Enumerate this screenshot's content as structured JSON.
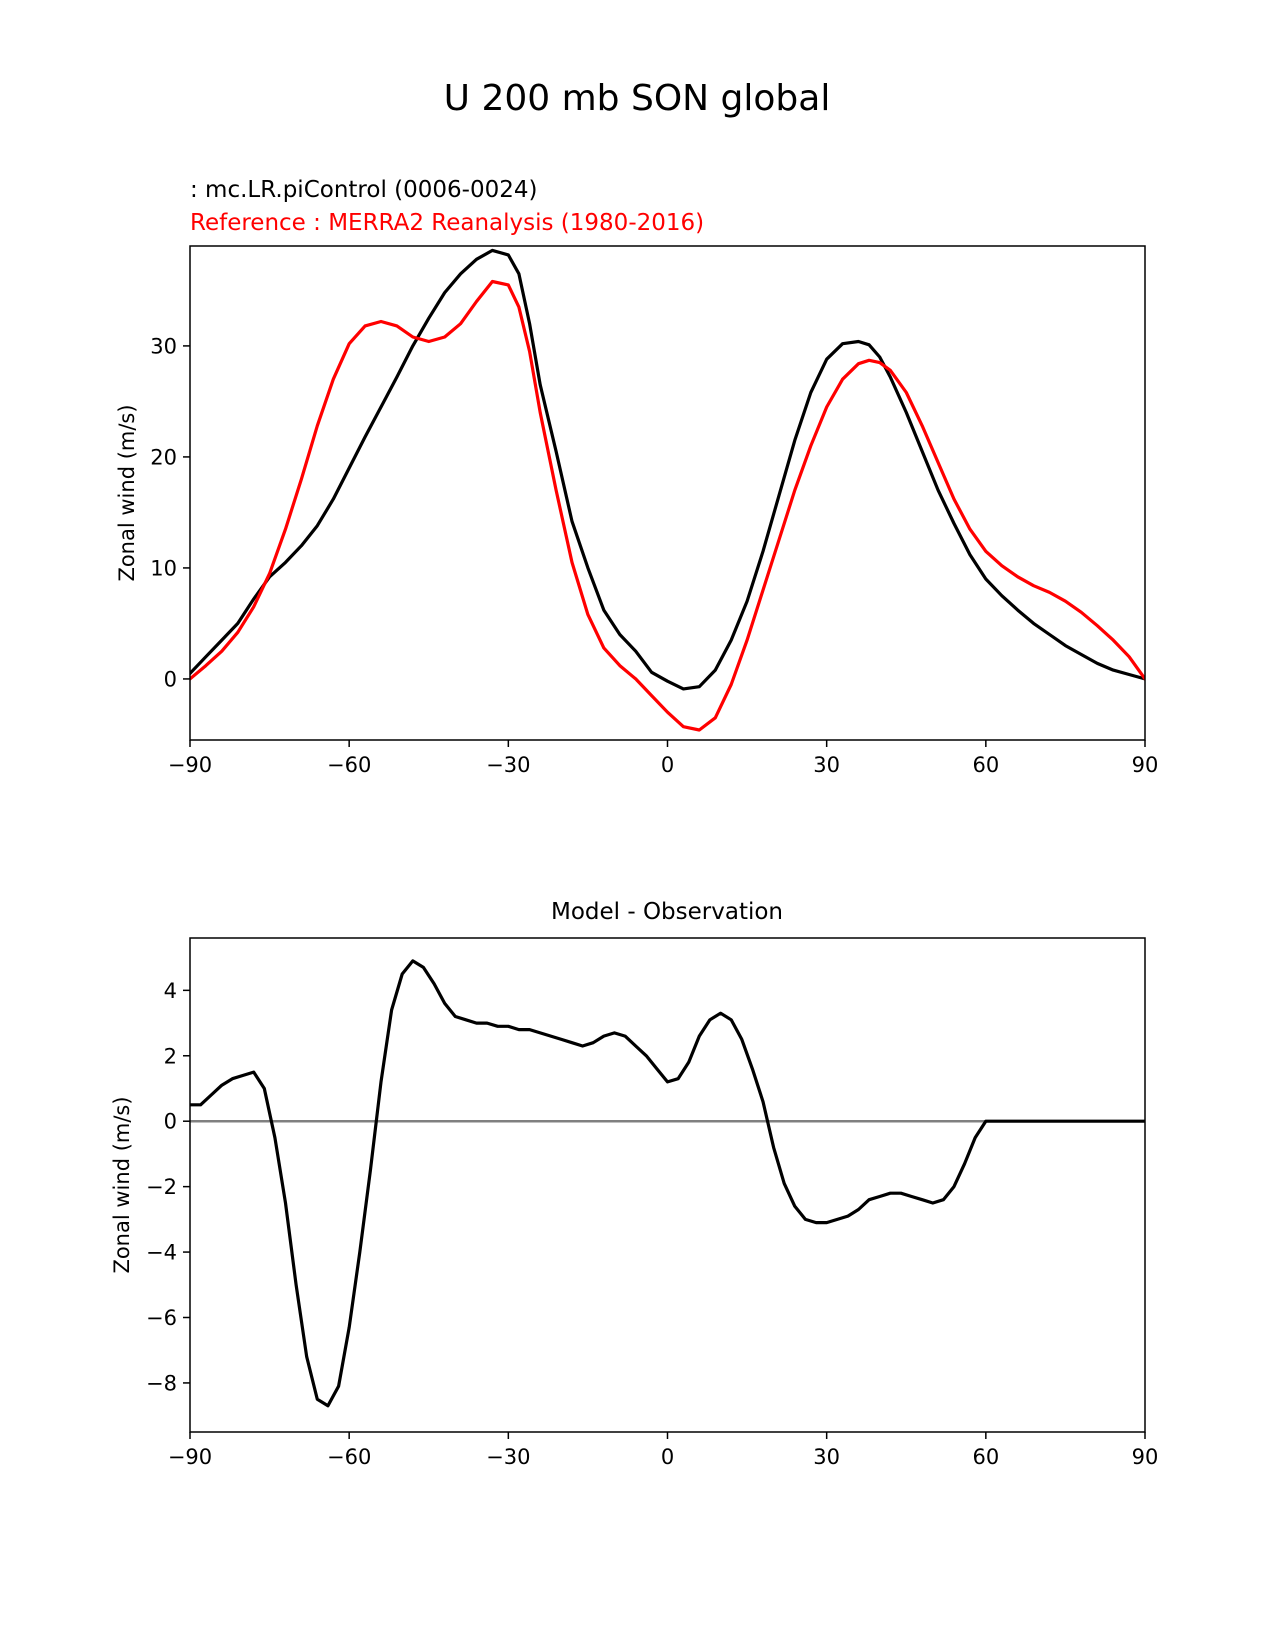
{
  "figure": {
    "suptitle": "U 200 mb SON global"
  },
  "chart_data": [
    {
      "type": "line",
      "model_label": " : mc.LR.piControl (0006-0024)",
      "reference_label": "Reference : MERRA2 Reanalysis (1980-2016)",
      "xlabel": "",
      "ylabel": "Zonal wind (m/s)",
      "xlim": [
        -90,
        90
      ],
      "ylim": [
        -5.5,
        39
      ],
      "xticks": [
        -90,
        -60,
        -30,
        0,
        30,
        60,
        90
      ],
      "xtick_labels": [
        "−90",
        "−60",
        "−30",
        "0",
        "30",
        "60",
        "90"
      ],
      "yticks": [
        0,
        10,
        20,
        30
      ],
      "ytick_labels": [
        "0",
        "10",
        "20",
        "30"
      ],
      "series": [
        {
          "name": "mc.LR.piControl (0006-0024)",
          "color": "#000000",
          "x": [
            -90,
            -87,
            -84,
            -81,
            -78,
            -75,
            -72,
            -69,
            -66,
            -63,
            -60,
            -57,
            -54,
            -51,
            -48,
            -45,
            -42,
            -39,
            -36,
            -33,
            -30,
            -28,
            -26,
            -24,
            -21,
            -18,
            -15,
            -12,
            -9,
            -6,
            -3,
            0,
            3,
            6,
            9,
            12,
            15,
            18,
            21,
            24,
            27,
            30,
            33,
            36,
            38,
            40,
            42,
            45,
            48,
            51,
            54,
            57,
            60,
            63,
            66,
            69,
            72,
            75,
            78,
            81,
            84,
            87,
            90
          ],
          "y": [
            0.5,
            2.0,
            3.5,
            5.0,
            7.2,
            9.2,
            10.5,
            12.0,
            13.8,
            16.2,
            19.0,
            21.8,
            24.5,
            27.2,
            30.0,
            32.5,
            34.8,
            36.5,
            37.8,
            38.6,
            38.2,
            36.5,
            32.0,
            26.5,
            20.5,
            14.2,
            10.0,
            6.2,
            4.0,
            2.5,
            0.6,
            -0.2,
            -0.9,
            -0.7,
            0.8,
            3.5,
            7.0,
            11.5,
            16.5,
            21.5,
            25.8,
            28.8,
            30.2,
            30.4,
            30.1,
            29.0,
            27.2,
            24.0,
            20.5,
            17.0,
            14.0,
            11.2,
            9.0,
            7.5,
            6.2,
            5.0,
            4.0,
            3.0,
            2.2,
            1.4,
            0.8,
            0.4,
            0.0
          ]
        },
        {
          "name": "Reference : MERRA2 Reanalysis (1980-2016)",
          "color": "#ff0000",
          "x": [
            -90,
            -87,
            -84,
            -81,
            -78,
            -75,
            -72,
            -69,
            -66,
            -63,
            -60,
            -57,
            -54,
            -51,
            -48,
            -45,
            -42,
            -39,
            -36,
            -33,
            -30,
            -28,
            -26,
            -24,
            -21,
            -18,
            -15,
            -12,
            -9,
            -6,
            -3,
            0,
            3,
            6,
            9,
            12,
            15,
            18,
            21,
            24,
            27,
            30,
            33,
            36,
            38,
            40,
            42,
            45,
            48,
            51,
            54,
            57,
            60,
            63,
            66,
            69,
            72,
            75,
            78,
            81,
            84,
            87,
            90
          ],
          "y": [
            0.0,
            1.2,
            2.5,
            4.2,
            6.5,
            9.5,
            13.5,
            18.0,
            22.8,
            27.0,
            30.2,
            31.8,
            32.2,
            31.8,
            30.8,
            30.4,
            30.8,
            32.0,
            34.0,
            35.8,
            35.5,
            33.5,
            29.5,
            24.0,
            17.0,
            10.5,
            5.8,
            2.8,
            1.2,
            0.0,
            -1.5,
            -3.0,
            -4.3,
            -4.6,
            -3.5,
            -0.5,
            3.5,
            8.0,
            12.5,
            17.0,
            21.0,
            24.5,
            27.0,
            28.4,
            28.7,
            28.5,
            27.8,
            25.8,
            22.8,
            19.5,
            16.2,
            13.5,
            11.5,
            10.2,
            9.2,
            8.4,
            7.8,
            7.0,
            6.0,
            4.8,
            3.5,
            2.0,
            0.0
          ]
        }
      ]
    },
    {
      "type": "line",
      "title": "Model - Observation",
      "xlabel": "",
      "ylabel": "Zonal wind (m/s)",
      "xlim": [
        -90,
        90
      ],
      "ylim": [
        -9.5,
        5.6
      ],
      "xticks": [
        -90,
        -60,
        -30,
        0,
        30,
        60,
        90
      ],
      "xtick_labels": [
        "−90",
        "−60",
        "−30",
        "0",
        "30",
        "60",
        "90"
      ],
      "yticks": [
        -8,
        -6,
        -4,
        -2,
        0,
        2,
        4
      ],
      "ytick_labels": [
        "−8",
        "−6",
        "−4",
        "−2",
        "0",
        "2",
        "4"
      ],
      "zero_line_color": "#808080",
      "series": [
        {
          "name": "Model - Observation",
          "color": "#000000",
          "x": [
            -90,
            -88,
            -86,
            -84,
            -82,
            -80,
            -78,
            -76,
            -74,
            -72,
            -70,
            -68,
            -66,
            -64,
            -62,
            -60,
            -58,
            -56,
            -54,
            -52,
            -50,
            -48,
            -46,
            -44,
            -42,
            -40,
            -38,
            -36,
            -34,
            -32,
            -30,
            -28,
            -26,
            -24,
            -22,
            -20,
            -18,
            -16,
            -14,
            -12,
            -10,
            -8,
            -6,
            -4,
            -2,
            0,
            2,
            4,
            6,
            8,
            10,
            12,
            14,
            16,
            18,
            20,
            22,
            24,
            26,
            28,
            30,
            32,
            34,
            36,
            38,
            40,
            42,
            44,
            46,
            48,
            50,
            52,
            54,
            56,
            58,
            60,
            62,
            64,
            66,
            68,
            70,
            72,
            74,
            76,
            78,
            80,
            82,
            84,
            86,
            88,
            90
          ],
          "y": [
            0.5,
            0.5,
            0.8,
            1.1,
            1.3,
            1.4,
            1.5,
            1.0,
            -0.5,
            -2.5,
            -5.0,
            -7.2,
            -8.5,
            -8.7,
            -8.1,
            -6.3,
            -4.0,
            -1.5,
            1.2,
            3.4,
            4.5,
            4.9,
            4.7,
            4.2,
            3.6,
            3.2,
            3.1,
            3.0,
            3.0,
            2.9,
            2.9,
            2.8,
            2.8,
            2.7,
            2.6,
            2.5,
            2.4,
            2.3,
            2.4,
            2.6,
            2.7,
            2.6,
            2.3,
            2.0,
            1.6,
            1.2,
            1.3,
            1.8,
            2.6,
            3.1,
            3.3,
            3.1,
            2.5,
            1.6,
            0.6,
            -0.8,
            -1.9,
            -2.6,
            -3.0,
            -3.1,
            -3.1,
            -3.0,
            -2.9,
            -2.7,
            -2.4,
            -2.3,
            -2.2,
            -2.2,
            -2.3,
            -2.4,
            -2.5,
            -2.4,
            -2.0,
            -1.3,
            -0.5,
            0.0,
            0.0,
            0.0,
            0.0,
            0.0,
            0.0,
            0.0,
            0.0,
            0.0,
            0.0,
            0.0,
            0.0,
            0.0,
            0.0,
            0.0,
            0.0
          ]
        }
      ]
    }
  ]
}
